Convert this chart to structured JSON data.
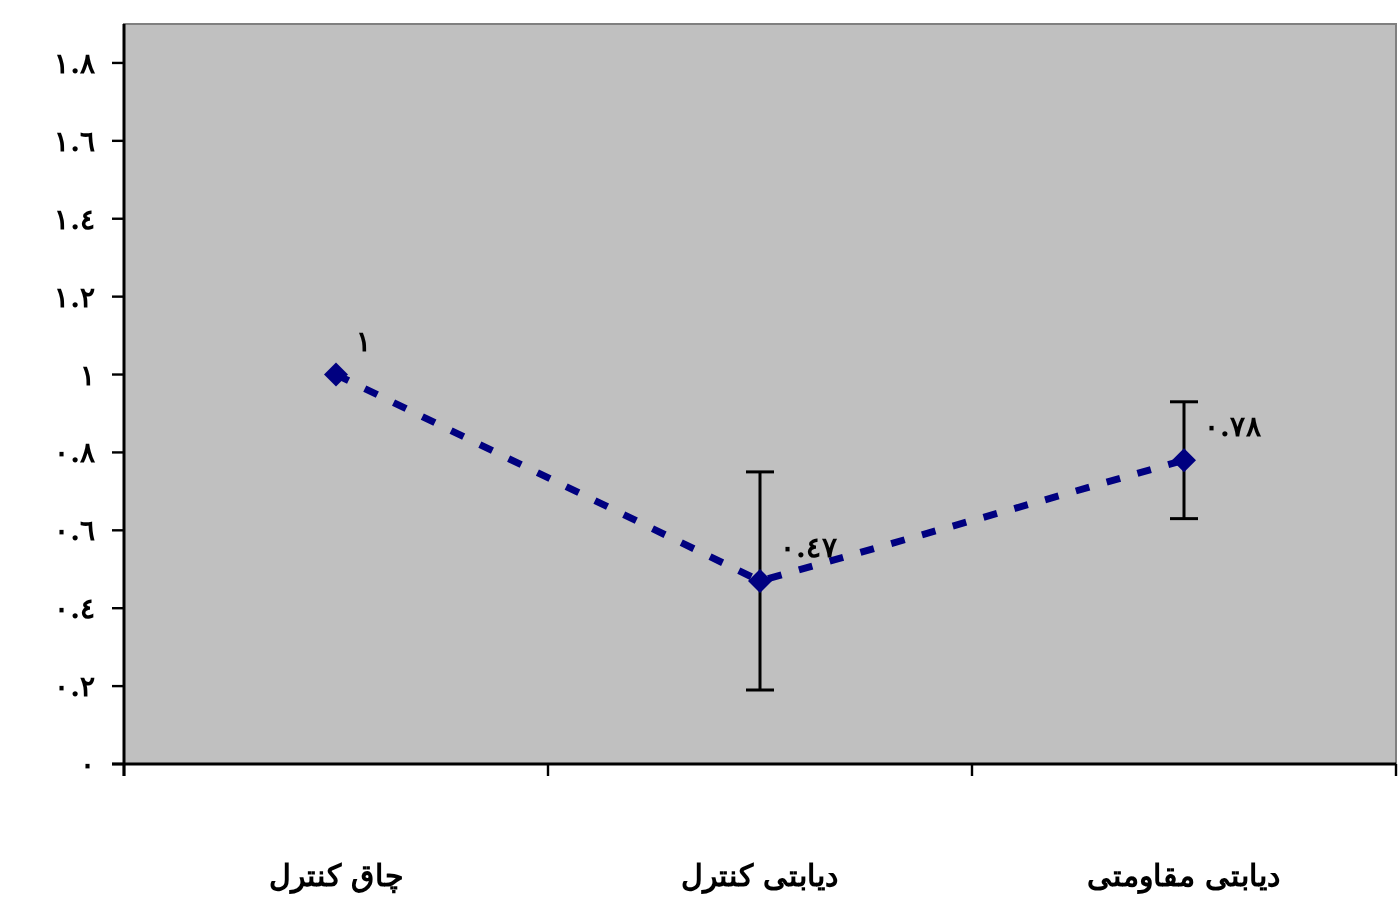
{
  "chart_data": {
    "type": "line",
    "categories": [
      "چاق کنترل",
      "دیابتی کنترل",
      "دیابتی مقاومتی"
    ],
    "series": [
      {
        "color": "#000080",
        "values": [
          1,
          0.47,
          0.78
        ],
        "errors": [
          null,
          0.28,
          0.15
        ],
        "value_labels": [
          "١",
          "٠.٤٧",
          "٠.٧٨"
        ]
      }
    ],
    "marker": "diamond",
    "line_style": "dashed",
    "ylim": [
      0,
      1.9
    ],
    "yticks": [
      {
        "value": 0,
        "label": "٠"
      },
      {
        "value": 0.2,
        "label": "٠.٢"
      },
      {
        "value": 0.4,
        "label": "٠.٤"
      },
      {
        "value": 0.6,
        "label": "٠.٦"
      },
      {
        "value": 0.8,
        "label": "٠.٨"
      },
      {
        "value": 1,
        "label": "١"
      },
      {
        "value": 1.2,
        "label": "١.٢"
      },
      {
        "value": 1.4,
        "label": "١.٤"
      },
      {
        "value": 1.6,
        "label": "١.٦"
      },
      {
        "value": 1.8,
        "label": "١.٨"
      }
    ],
    "grid": false
  }
}
